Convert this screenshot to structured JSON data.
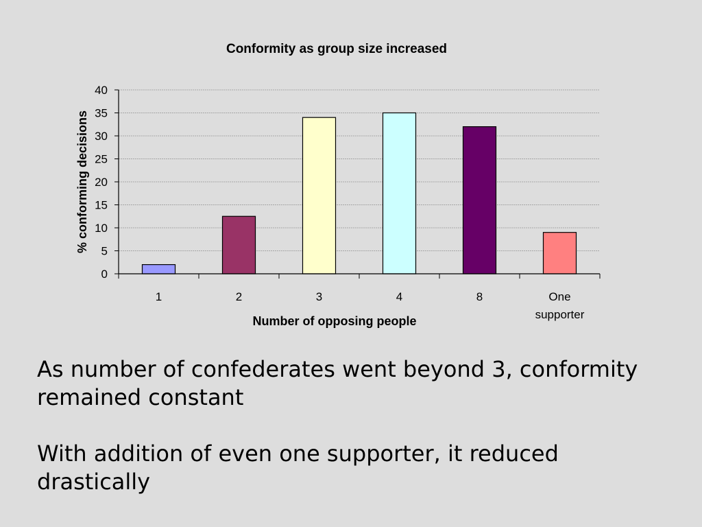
{
  "chart_data": {
    "type": "bar",
    "title": "Conformity as group size increased",
    "xlabel": "Number of opposing people",
    "ylabel": "% conforming decisions",
    "categories": [
      "1",
      "2",
      "3",
      "4",
      "8",
      "One supporter"
    ],
    "category_lines": [
      [
        "1"
      ],
      [
        "2"
      ],
      [
        "3"
      ],
      [
        "4"
      ],
      [
        "8"
      ],
      [
        "One",
        "supporter"
      ]
    ],
    "values": [
      2,
      12.5,
      34,
      35,
      32,
      9
    ],
    "colors": [
      "#9999ff",
      "#993366",
      "#ffffcc",
      "#ccffff",
      "#660066",
      "#ff8080"
    ],
    "ylim": [
      0,
      40
    ],
    "yticks": [
      0,
      5,
      10,
      15,
      20,
      25,
      30,
      35,
      40
    ],
    "grid": true,
    "legend": "none"
  },
  "slide": {
    "paragraph1": "As number of confederates went beyond 3, conformity remained constant",
    "paragraph2": "With addition of even one supporter, it reduced drastically"
  }
}
